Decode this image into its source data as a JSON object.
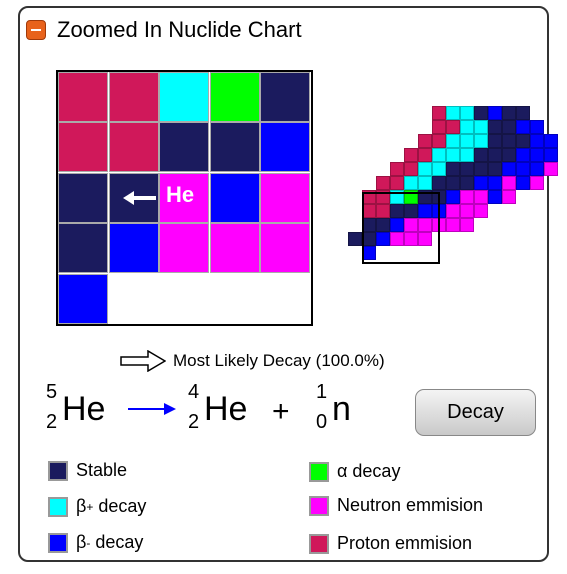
{
  "title": "Zoomed In Nuclide Chart",
  "colors": {
    "stable": "#1b1b5e",
    "beta_plus": "#00ffff",
    "beta_minus": "#0000ff",
    "alpha": "#00ff00",
    "neutron": "#ff00ff",
    "proton": "#d0185a",
    "arrow_blue": "#0000ff"
  },
  "zoom_grid": {
    "rows": [
      [
        "proton",
        "proton",
        "beta_plus",
        "alpha",
        "stable"
      ],
      [
        "proton",
        "proton",
        "stable",
        "stable",
        "beta_minus"
      ],
      [
        "stable",
        "stable",
        "neutron",
        "beta_minus",
        "neutron"
      ],
      [
        "stable",
        "beta_minus",
        "neutron",
        "neutron",
        "neutron"
      ],
      [
        "beta_minus",
        null,
        null,
        null,
        null
      ]
    ],
    "selected_label": "He"
  },
  "decay_info": {
    "label": "Most Likely Decay (100.0%)"
  },
  "equation": {
    "parent": {
      "mass": "5",
      "atomic": "2",
      "symbol": "He"
    },
    "daughter": {
      "mass": "4",
      "atomic": "2",
      "symbol": "He"
    },
    "plus": "+",
    "emitted": {
      "mass": "1",
      "atomic": "0",
      "symbol": "n"
    }
  },
  "decay_button": "Decay",
  "legend": [
    {
      "key": "stable",
      "label": "Stable"
    },
    {
      "key": "beta_plus",
      "label": "β",
      "sup": "+",
      "suffix": " decay"
    },
    {
      "key": "beta_minus",
      "label": "β",
      "sup": "-",
      "suffix": " decay"
    },
    {
      "key": "alpha",
      "label": "α decay"
    },
    {
      "key": "neutron",
      "label": "Neutron emmision"
    },
    {
      "key": "proton",
      "label": "Proton emmision"
    }
  ]
}
